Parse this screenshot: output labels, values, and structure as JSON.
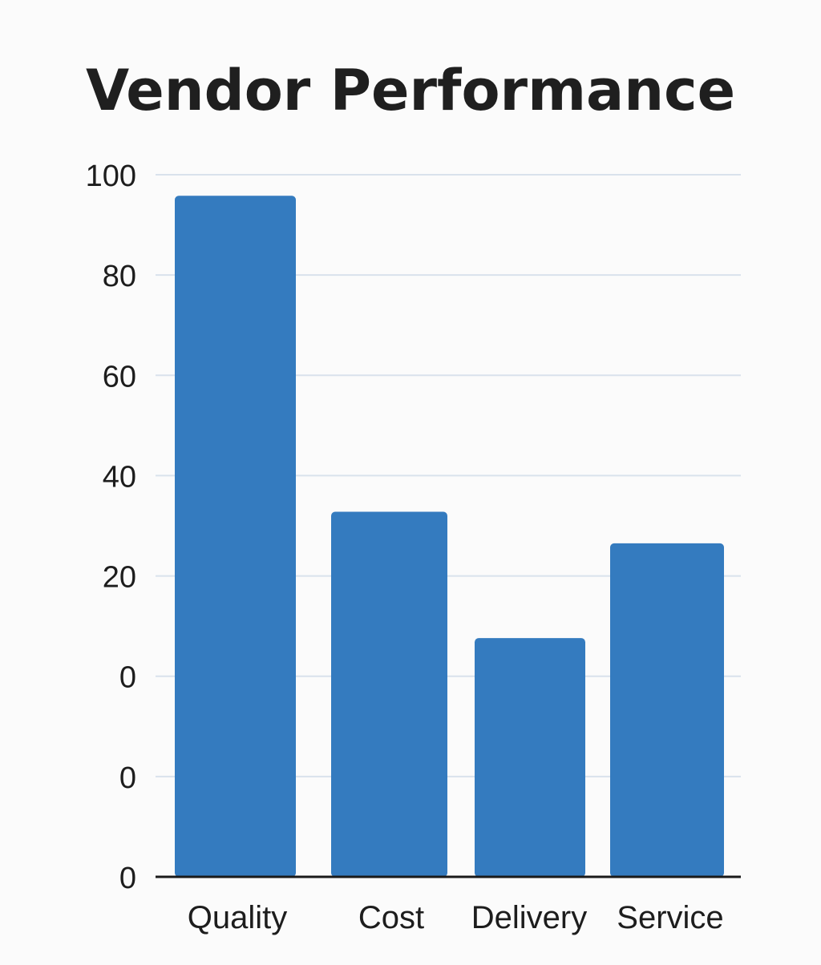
{
  "chart_data": {
    "type": "bar",
    "title": "Vendor Performance",
    "xlabel": "",
    "ylabel": "",
    "categories": [
      "Quality",
      "Cost",
      "Delivery",
      "Service"
    ],
    "values": [
      97,
      52,
      34,
      47.5
    ],
    "ylim": [
      0,
      100
    ],
    "y_tick_labels": [
      "0",
      "0",
      "0",
      "20",
      "40",
      "60",
      "80",
      "100"
    ],
    "grid": true,
    "legend": "none"
  },
  "colors": {
    "bar": "#347bbf",
    "grid": "#d9e2ec",
    "axis": "#1a1a1a",
    "background": "#fbfbfb"
  }
}
